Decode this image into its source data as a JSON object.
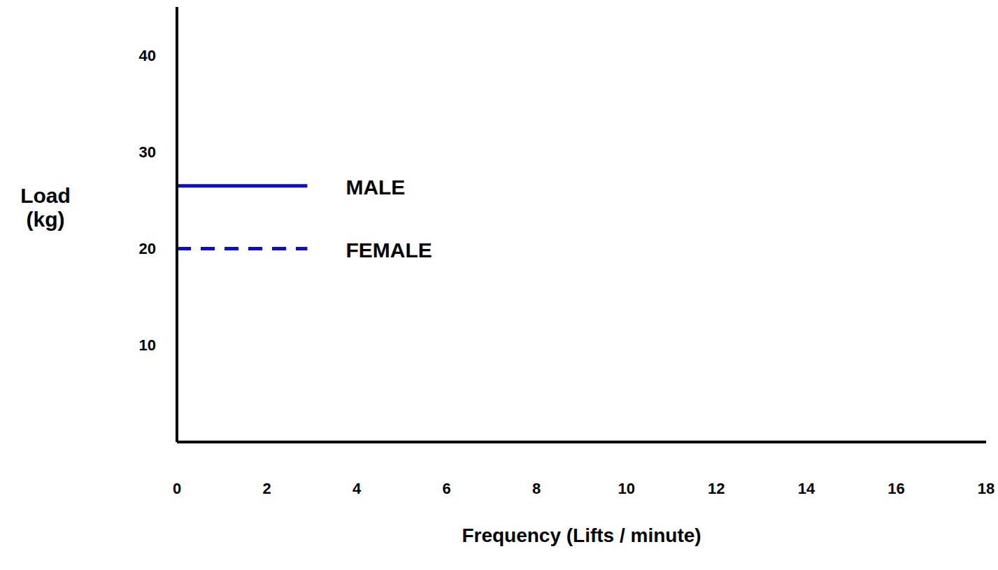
{
  "chart_data": {
    "type": "line",
    "x_label": "Frequency (Lifts / minute)",
    "y_label": "Load (kg)",
    "x": [
      0,
      2.9
    ],
    "series": [
      {
        "name": "MALE",
        "color": "#0a0adc",
        "line_style": "solid",
        "marker": "none",
        "values": [
          26.5,
          26.5
        ]
      },
      {
        "name": "FEMALE",
        "color": "#0a0adc",
        "line_style": "dashed",
        "marker": "none",
        "values": [
          20,
          20
        ]
      }
    ],
    "xlim": [
      0,
      18
    ],
    "xticks": [
      0,
      2,
      4,
      6,
      8,
      10,
      12,
      14,
      16,
      18
    ],
    "ylim": [
      0,
      45
    ],
    "yticks": [
      10,
      20,
      30,
      40
    ],
    "grid": false
  }
}
